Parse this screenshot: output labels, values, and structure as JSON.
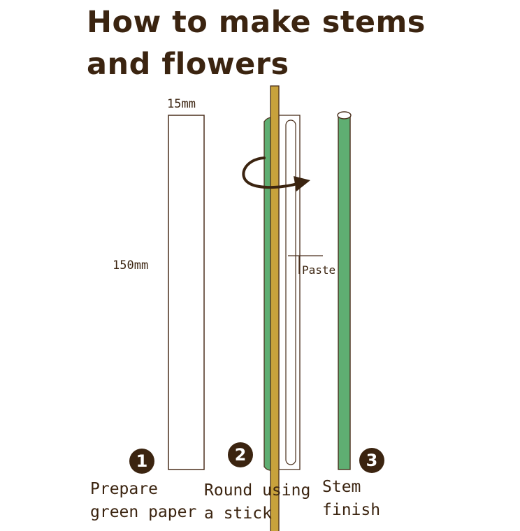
{
  "title": {
    "line1": "How to make stems",
    "line2": "and flowers"
  },
  "dimensions": {
    "width_label": "15mm",
    "length_label": "150mm"
  },
  "paste_label": "Paste",
  "steps": [
    {
      "number": "1",
      "caption_line1": "Prepare",
      "caption_line2": "green paper"
    },
    {
      "number": "2",
      "caption_line1": "Round using",
      "caption_line2": "a stick"
    },
    {
      "number": "3",
      "caption_line1": "Stem",
      "caption_line2": "finish"
    }
  ],
  "colors": {
    "text": "#3b2410",
    "stem_green": "#5fae72",
    "stick_gold": "#c8a23c",
    "outline": "#4a2f1c"
  },
  "icons": {
    "rotation_arrow": "curved-arrow-icon"
  }
}
